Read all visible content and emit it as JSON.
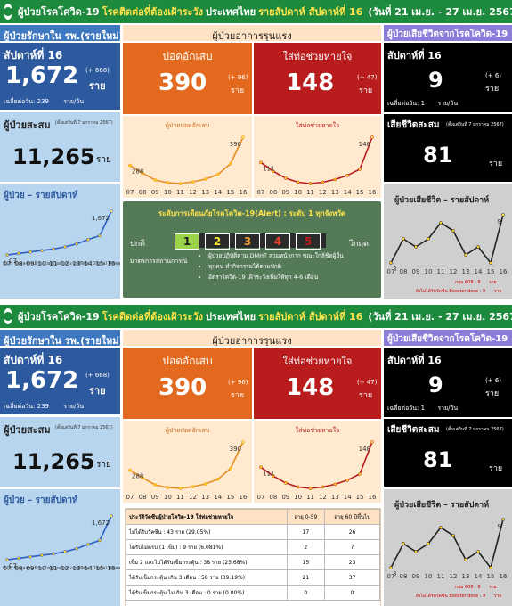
{
  "header": {
    "title_a": "ผู้ป่วยโรคโควิด-19",
    "title_b": "โรคติดต่อที่ต้องเฝ้าระวัง",
    "title_c": "ประเทศไทย",
    "title_d": "รายสัปดาห์ สัปดาห์ที่ 16",
    "title_e": "(วันที่ 21 เม.ย. - 27 เม.ย. 2567)"
  },
  "treat": {
    "title": "ผู้ป่วยรักษาใน รพ.(รายใหม่)",
    "week_label": "สัปดาห์ที่ 16",
    "value": "1,672",
    "delta": "(+ 668)",
    "unit": "ราย",
    "avg_label": "เฉลี่ยต่อวัน:",
    "avg_value": "239",
    "avg_unit": "ราย/วัน"
  },
  "cumulative": {
    "title": "ผู้ป่วยสะสม",
    "since": "(ตั้งแต่วันที่ 7 มกราคม 2567)",
    "value": "11,265",
    "unit": "ราย"
  },
  "weekly_cases": {
    "title": "ผู้ป่วย – รายสัปดาห์",
    "first_label": "07",
    "last_label": "1,672",
    "source": "ที่มา: ข้อมูลการเฝ้าระวังผู้ป่วยด้วยระบบดิจิทัล (Digital Disease Surveillance : DDS)"
  },
  "severe": {
    "title": "ผู้ป่วยอาการรุนแรง",
    "pneu_label": "ปอดอักเสบ",
    "pneu_value": "390",
    "pneu_delta": "(+ 96)",
    "pneu_unit": "ราย",
    "vent_label": "ใส่ท่อช่วยหายใจ",
    "vent_value": "148",
    "vent_delta": "(+ 47)",
    "vent_unit": "ราย",
    "pneu_chart_title": "ผู้ป่วยปอดอักเสบ",
    "pneu_first": "288",
    "pneu_last": "390",
    "vent_chart_title": "ใส่ท่อช่วยหายใจ",
    "vent_first": "111",
    "vent_last": "148"
  },
  "alert": {
    "title": "ระดับการเตือนภัยโรคโควิด-19(Alert) : ระดับ 1 ทุกจังหวัด",
    "normal": "ปกติ",
    "crisis": "วิกฤต",
    "levels": [
      "1",
      "2",
      "3",
      "4",
      "5"
    ],
    "level_colors": [
      "#9bd34a",
      "#f5e63a",
      "#f39a2a",
      "#e8452f",
      "#c2181e"
    ],
    "measures_label": "มาตรการสถานการณ์",
    "measures": [
      "ผู้ป่วยปฏิบัติตาม DMHT สวมหน้ากาก ขณะใกล้ชิดผู้อื่น",
      "ทุกคน ทำกิจกรรมได้ตามปกติ",
      "อัตราโควิด-19 เฝ้าระวังเพิ่มให้ทุก 4-6 เดือน"
    ]
  },
  "deaths": {
    "title": "ผู้ป่วยเสียชีวิตจากโรคโควิด-19",
    "week_label": "สัปดาห์ที่ 16",
    "value": "9",
    "delta": "(+ 6)",
    "unit": "ราย",
    "avg_label": "เฉลี่ยต่อวัน:",
    "avg_value": "1",
    "avg_unit": "ราย/วัน",
    "cum_title": "เสียชีวิตสะสม",
    "cum_since": "(ตั้งแต่วันที่ 7 มกราคม 2567)",
    "cum_value": "81",
    "cum_unit": "ราย",
    "chart_title": "ผู้ป่วยเสียชีวิต – รายสัปดาห์",
    "first_label": "3",
    "last_label": "9",
    "note_a": "กลุ่ม 608 :",
    "note_a_val": "8",
    "note_a_unit": "ราย",
    "note_b": "ยังไม่ได้รับวัคซีน Booster dose :",
    "note_b_val": "9",
    "note_b_unit": "ราย"
  },
  "weeks": [
    "07",
    "08",
    "09",
    "10",
    "11",
    "12",
    "13",
    "14",
    "15",
    "16"
  ],
  "vaccine_table": {
    "header": "ประวัติวัคซีนผู้ป่วยโควิด-19 ใส่ท่อช่วยหายใจ",
    "col_a": "อายุ 0-59",
    "col_b": "อายุ 60 ปีขึ้นไป",
    "rows": [
      {
        "label": "ไม่ได้รับวัคซีน : 43 ราย (29.05%)",
        "a": "17",
        "b": "26"
      },
      {
        "label": "ได้รับไม่ครบ (1 เข็ม) : 9 ราย (6.081%)",
        "a": "2",
        "b": "7"
      },
      {
        "label": "เข็ม 2 และไม่ได้รับเข็มกระตุ้น : 38 ราย (25.68%)",
        "a": "15",
        "b": "23"
      },
      {
        "label": "ได้รับเข็มกระตุ้น เกิน 3 เดือน : 58 ราย (39.19%)",
        "a": "21",
        "b": "37"
      },
      {
        "label": "ได้รับเข็มกระตุ้น ไม่เกิน 3 เดือน : 0 ราย (0.00%)",
        "a": "0",
        "b": "0"
      }
    ]
  },
  "chart_data": [
    {
      "type": "line",
      "title": "ผู้ป่วย – รายสัปดาห์",
      "x": [
        "07",
        "08",
        "09",
        "10",
        "11",
        "12",
        "13",
        "14",
        "15",
        "16"
      ],
      "values": [
        480,
        520,
        560,
        600,
        640,
        700,
        780,
        900,
        1004,
        1672
      ],
      "annotations": [
        "07",
        "1,672"
      ]
    },
    {
      "type": "line",
      "title": "ผู้ป่วยปอดอักเสบ",
      "x": [
        "07",
        "08",
        "09",
        "10",
        "11",
        "12",
        "13",
        "14",
        "15",
        "16"
      ],
      "values": [
        288,
        260,
        235,
        225,
        222,
        228,
        238,
        255,
        294,
        390
      ],
      "annotations": [
        "288",
        "390"
      ]
    },
    {
      "type": "line",
      "title": "ใส่ท่อช่วยหายใจ",
      "x": [
        "07",
        "08",
        "09",
        "10",
        "11",
        "12",
        "13",
        "14",
        "15",
        "16"
      ],
      "values": [
        111,
        98,
        88,
        82,
        80,
        82,
        86,
        92,
        101,
        148
      ],
      "annotations": [
        "111",
        "148"
      ]
    },
    {
      "type": "line",
      "title": "ผู้ป่วยเสียชีวิต – รายสัปดาห์",
      "x": [
        "07",
        "08",
        "09",
        "10",
        "11",
        "12",
        "13",
        "14",
        "15",
        "16"
      ],
      "values": [
        3,
        6,
        5,
        6,
        8,
        7,
        4,
        5,
        3,
        9
      ],
      "annotations": [
        "3",
        "9"
      ]
    }
  ]
}
